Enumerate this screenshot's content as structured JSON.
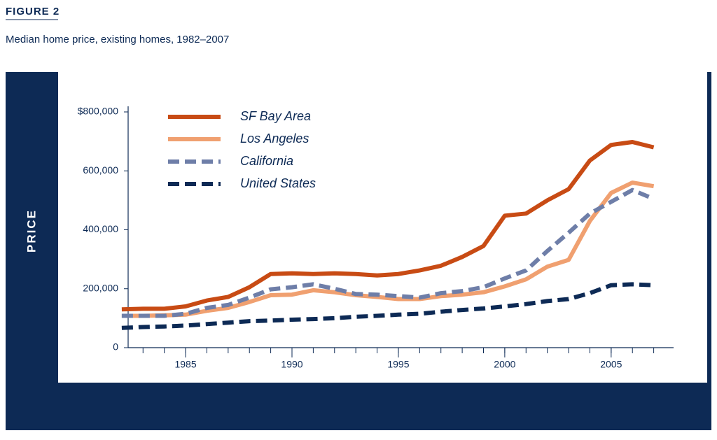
{
  "chart_data": {
    "type": "line",
    "figure_label": "FIGURE 2",
    "title": "Median home price, existing homes, 1982–2007",
    "ylabel": "PRICE",
    "x": [
      1982,
      1983,
      1984,
      1985,
      1986,
      1987,
      1988,
      1989,
      1990,
      1991,
      1992,
      1993,
      1994,
      1995,
      1996,
      1997,
      1998,
      1999,
      2000,
      2001,
      2002,
      2003,
      2004,
      2005,
      2006,
      2007
    ],
    "xlim": [
      1982.3,
      2008
    ],
    "xticks": [
      1985,
      1990,
      1995,
      2000,
      2005
    ],
    "xminorticks": [
      1983,
      1984,
      1985,
      1986,
      1987,
      1988,
      1989,
      1990,
      1991,
      1992,
      1993,
      1994,
      1995,
      1996,
      1997,
      1998,
      1999,
      2000,
      2001,
      2002,
      2003,
      2004,
      2005,
      2006,
      2007
    ],
    "ylim": [
      0,
      800000
    ],
    "yticks": [
      0,
      {
        "value": 200000,
        "label": "200,000"
      },
      {
        "value": 400000,
        "label": "400,000"
      },
      {
        "value": 600000,
        "label": "600,000"
      },
      {
        "value": 800000,
        "label": "$800,000"
      }
    ],
    "series": [
      {
        "name": "SF Bay Area",
        "color": "#c84b14",
        "dashed": false,
        "values": [
          130000,
          132000,
          132000,
          140000,
          160000,
          172000,
          205000,
          250000,
          252000,
          250000,
          252000,
          250000,
          245000,
          250000,
          262000,
          278000,
          308000,
          345000,
          448000,
          455000,
          500000,
          538000,
          635000,
          688000,
          698000,
          680000
        ]
      },
      {
        "name": "Los Angeles",
        "color": "#f0a070",
        "dashed": false,
        "values": [
          108000,
          108000,
          110000,
          112000,
          125000,
          135000,
          155000,
          178000,
          180000,
          195000,
          188000,
          178000,
          172000,
          165000,
          165000,
          175000,
          180000,
          188000,
          208000,
          232000,
          275000,
          298000,
          430000,
          525000,
          560000,
          548000
        ]
      },
      {
        "name": "California",
        "color": "#6e7ea8",
        "dashed": true,
        "values": [
          108000,
          108000,
          108000,
          115000,
          135000,
          145000,
          170000,
          198000,
          205000,
          215000,
          200000,
          182000,
          180000,
          175000,
          170000,
          185000,
          192000,
          205000,
          235000,
          262000,
          328000,
          390000,
          455000,
          495000,
          535000,
          505000
        ]
      },
      {
        "name": "United States",
        "color": "#0d2a55",
        "dashed": true,
        "values": [
          67000,
          70000,
          72000,
          75000,
          80000,
          85000,
          90000,
          92000,
          95000,
          97000,
          100000,
          105000,
          108000,
          112000,
          115000,
          122000,
          128000,
          133000,
          140000,
          148000,
          158000,
          165000,
          185000,
          212000,
          215000,
          212000
        ]
      }
    ]
  }
}
